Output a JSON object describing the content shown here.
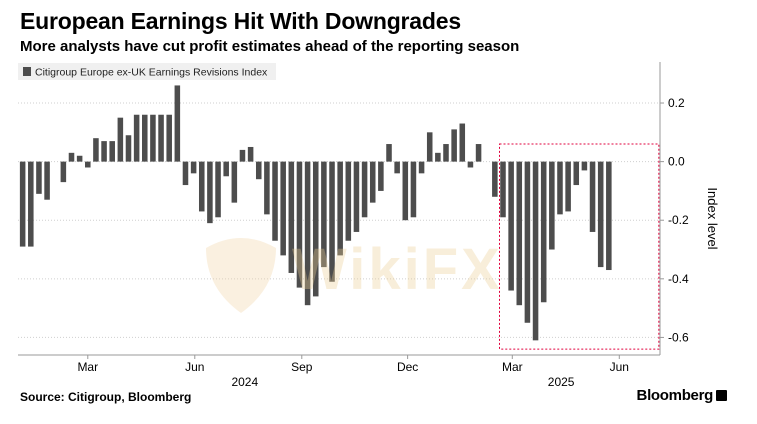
{
  "header": {
    "title": "European Earnings Hit With Downgrades",
    "subtitle": "More analysts have cut profit estimates ahead of the reporting season"
  },
  "footer": {
    "source": "Source: Citigroup, Bloomberg",
    "brand": "Bloomberg"
  },
  "watermark": {
    "text": "WikiFX"
  },
  "colors": {
    "bar": "#4d4d4d",
    "grid": "#cfcfcf",
    "highlight": "#e0003c"
  },
  "chart_data": {
    "type": "bar",
    "legend": {
      "label": "Citigroup Europe ex-UK Earnings Revisions Index",
      "placement": "top-left"
    },
    "ylabel": "Index level",
    "ylim": [
      -0.66,
      0.34
    ],
    "yticks": [
      0.2,
      0.0,
      -0.2,
      -0.4,
      -0.6
    ],
    "ytick_labels": [
      "0.2",
      "0.0",
      "-0.2",
      "-0.4",
      "-0.6"
    ],
    "grid": true,
    "x_range": [
      "2024-01-01",
      "2025-07-06"
    ],
    "x_ticks": [
      {
        "date": "2024-03-01",
        "label": "Mar"
      },
      {
        "date": "2024-06-01",
        "label": "Jun"
      },
      {
        "date": "2024-09-01",
        "label": "Sep"
      },
      {
        "date": "2024-12-01",
        "label": "Dec"
      },
      {
        "date": "2025-03-01",
        "label": "Mar"
      },
      {
        "date": "2025-06-01",
        "label": "Jun"
      }
    ],
    "year_labels": [
      {
        "date": "2024-07-14",
        "label": "2024"
      },
      {
        "date": "2025-04-12",
        "label": "2025"
      }
    ],
    "highlight_range": {
      "from": "2025-02-18",
      "to": "2025-07-05",
      "ymin": -0.64,
      "ymax": 0.06
    },
    "series": [
      {
        "name": "Citigroup Europe ex-UK Earnings Revisions Index",
        "x": [
          "2024-01-05",
          "2024-01-12",
          "2024-01-19",
          "2024-01-26",
          "2024-02-02",
          "2024-02-09",
          "2024-02-16",
          "2024-02-23",
          "2024-03-01",
          "2024-03-08",
          "2024-03-15",
          "2024-03-22",
          "2024-03-29",
          "2024-04-05",
          "2024-04-12",
          "2024-04-19",
          "2024-04-26",
          "2024-05-03",
          "2024-05-10",
          "2024-05-17",
          "2024-05-24",
          "2024-05-31",
          "2024-06-07",
          "2024-06-14",
          "2024-06-21",
          "2024-06-28",
          "2024-07-05",
          "2024-07-12",
          "2024-07-19",
          "2024-07-26",
          "2024-08-02",
          "2024-08-09",
          "2024-08-16",
          "2024-08-23",
          "2024-08-30",
          "2024-09-06",
          "2024-09-13",
          "2024-09-20",
          "2024-09-27",
          "2024-10-04",
          "2024-10-11",
          "2024-10-18",
          "2024-10-25",
          "2024-11-01",
          "2024-11-08",
          "2024-11-15",
          "2024-11-22",
          "2024-11-29",
          "2024-12-06",
          "2024-12-13",
          "2024-12-20",
          "2024-12-27",
          "2025-01-03",
          "2025-01-10",
          "2025-01-17",
          "2025-01-24",
          "2025-01-31",
          "2025-02-07",
          "2025-02-14",
          "2025-02-21",
          "2025-02-28",
          "2025-03-07",
          "2025-03-14",
          "2025-03-21",
          "2025-03-28",
          "2025-04-04",
          "2025-04-11",
          "2025-04-18",
          "2025-04-25",
          "2025-05-02",
          "2025-05-09",
          "2025-05-16",
          "2025-05-23",
          "2025-05-30",
          "2025-06-06",
          "2025-06-13",
          "2025-06-20",
          "2025-06-27"
        ],
        "values": [
          -0.29,
          -0.29,
          -0.11,
          -0.13,
          0.0,
          -0.07,
          0.03,
          0.02,
          -0.02,
          0.08,
          0.07,
          0.07,
          0.15,
          0.09,
          0.16,
          0.16,
          0.16,
          0.16,
          0.16,
          0.26,
          -0.08,
          -0.04,
          -0.17,
          -0.21,
          -0.19,
          -0.05,
          -0.14,
          0.04,
          0.05,
          -0.06,
          -0.18,
          -0.27,
          -0.32,
          -0.38,
          -0.43,
          -0.49,
          -0.46,
          -0.36,
          -0.41,
          -0.32,
          -0.27,
          -0.24,
          -0.19,
          -0.14,
          -0.1,
          0.06,
          -0.04,
          -0.2,
          -0.19,
          -0.04,
          0.1,
          0.03,
          0.06,
          0.11,
          0.13,
          -0.02,
          0.06,
          0.0,
          -0.12,
          -0.19,
          -0.44,
          -0.49,
          -0.55,
          -0.61,
          -0.48,
          -0.3,
          -0.18,
          -0.17,
          -0.08,
          -0.03,
          -0.24,
          -0.36,
          -0.37,
          0.0,
          0.0,
          0.0,
          0.0,
          0.0
        ]
      }
    ]
  }
}
